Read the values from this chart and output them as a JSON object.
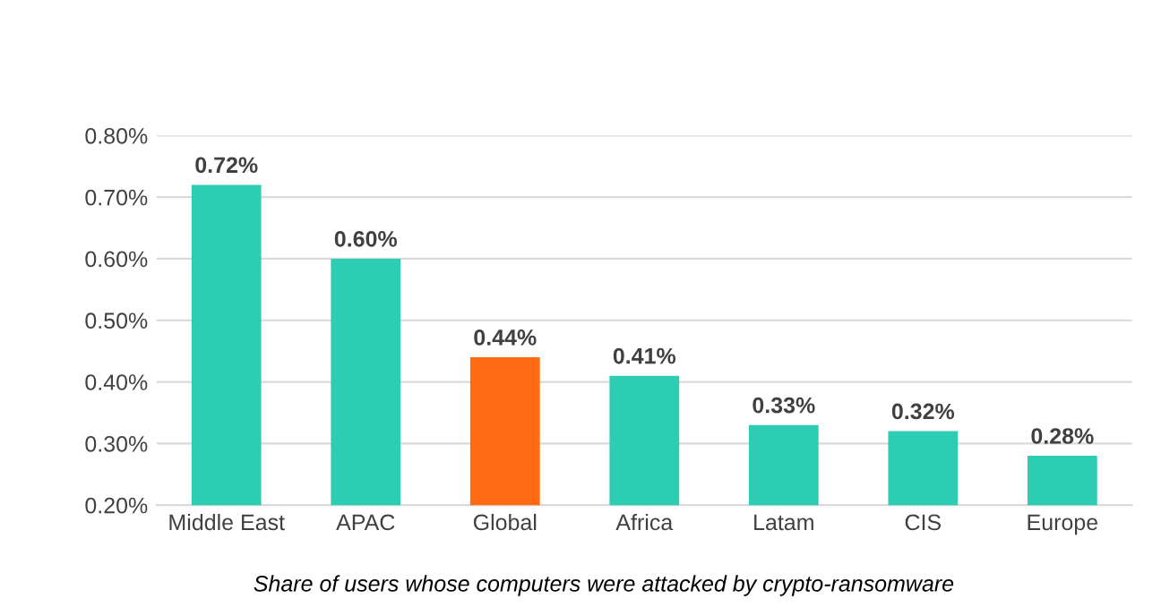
{
  "chart_data": {
    "type": "bar",
    "categories": [
      "Middle East",
      "APAC",
      "Global",
      "Africa",
      "Latam",
      "CIS",
      "Europe"
    ],
    "values": [
      0.72,
      0.6,
      0.44,
      0.41,
      0.33,
      0.32,
      0.28
    ],
    "colors": [
      "#2ccdb2",
      "#2ccdb2",
      "#ff6a13",
      "#2ccdb2",
      "#2ccdb2",
      "#2ccdb2",
      "#2ccdb2"
    ],
    "value_labels": [
      "0.72%",
      "0.60%",
      "0.44%",
      "0.41%",
      "0.33%",
      "0.32%",
      "0.28%"
    ],
    "ylim": [
      0.2,
      0.8
    ],
    "yticks": [
      {
        "value": 0.2,
        "label": "0.20%"
      },
      {
        "value": 0.3,
        "label": "0.30%"
      },
      {
        "value": 0.4,
        "label": "0.40%"
      },
      {
        "value": 0.5,
        "label": "0.50%"
      },
      {
        "value": 0.6,
        "label": "0.60%"
      },
      {
        "value": 0.7,
        "label": "0.70%"
      },
      {
        "value": 0.8,
        "label": "0.80%"
      }
    ],
    "grid": "y",
    "annotations": [
      "Share of users whose computers were attacked by crypto-ransomware"
    ]
  }
}
